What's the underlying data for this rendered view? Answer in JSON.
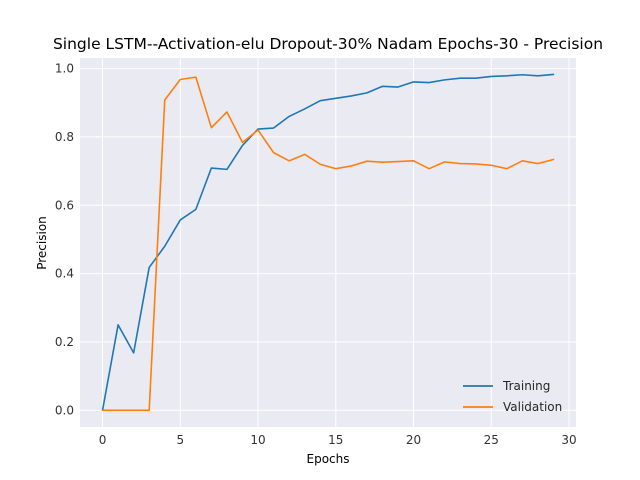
{
  "chart_data": {
    "type": "line",
    "title": "Single LSTM--Activation-elu Dropout-30% Nadam Epochs-30 - Precision",
    "xlabel": "Epochs",
    "ylabel": "Precision",
    "xlim": [
      -1.45,
      30.45
    ],
    "ylim": [
      -0.049,
      1.031
    ],
    "xticks": [
      0,
      5,
      10,
      15,
      20,
      25,
      30
    ],
    "yticks": [
      0.0,
      0.2,
      0.4,
      0.6,
      0.8,
      1.0
    ],
    "xtick_labels": [
      "0",
      "5",
      "10",
      "15",
      "20",
      "25",
      "30"
    ],
    "ytick_labels": [
      "0.0",
      "0.2",
      "0.4",
      "0.6",
      "0.8",
      "1.0"
    ],
    "grid": true,
    "legend_position": "lower right",
    "x": [
      0,
      1,
      2,
      3,
      4,
      5,
      6,
      7,
      8,
      9,
      10,
      11,
      12,
      13,
      14,
      15,
      16,
      17,
      18,
      19,
      20,
      21,
      22,
      23,
      24,
      25,
      26,
      27,
      28,
      29
    ],
    "series": [
      {
        "name": "Training",
        "color": "#1f77b4",
        "values": [
          0.0,
          0.25,
          0.168,
          0.418,
          0.48,
          0.557,
          0.588,
          0.709,
          0.705,
          0.775,
          0.823,
          0.826,
          0.86,
          0.882,
          0.906,
          0.913,
          0.92,
          0.929,
          0.948,
          0.946,
          0.961,
          0.959,
          0.967,
          0.972,
          0.972,
          0.977,
          0.979,
          0.982,
          0.979,
          0.983
        ]
      },
      {
        "name": "Validation",
        "color": "#ff7f0e",
        "values": [
          0.0,
          0.0,
          0.0,
          0.0,
          0.908,
          0.968,
          0.975,
          0.827,
          0.873,
          0.784,
          0.82,
          0.754,
          0.73,
          0.749,
          0.72,
          0.707,
          0.715,
          0.729,
          0.726,
          0.728,
          0.73,
          0.707,
          0.727,
          0.722,
          0.721,
          0.717,
          0.707,
          0.73,
          0.722,
          0.734
        ]
      }
    ]
  }
}
